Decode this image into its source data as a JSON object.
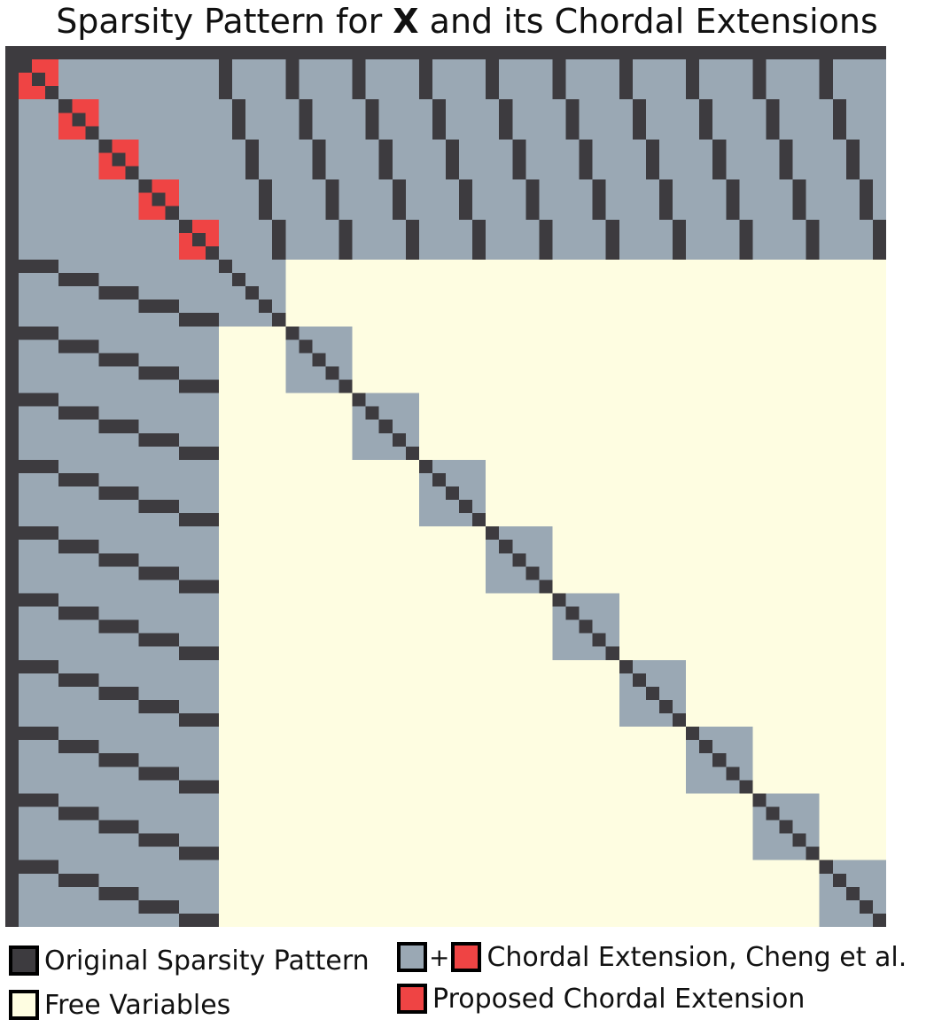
{
  "title": {
    "prefix": "Sparsity Pattern for ",
    "bold": "X",
    "suffix": " and its Chordal Extensions"
  },
  "colors": {
    "original": "#3d3b3f",
    "chordal": "#9aa8b4",
    "proposed": "#ef4444",
    "free": "#fefde1",
    "swatch_border": "#000000"
  },
  "matrix": {
    "n": 66,
    "first_block_size": 16,
    "block_size": 5,
    "block_count": 10
  },
  "legend": {
    "original": "Original Sparsity Pattern",
    "free": "Free Variables",
    "plus": "+",
    "cheng": "Chordal Extension, Cheng et al.",
    "proposed": "Proposed Chordal Extension"
  }
}
